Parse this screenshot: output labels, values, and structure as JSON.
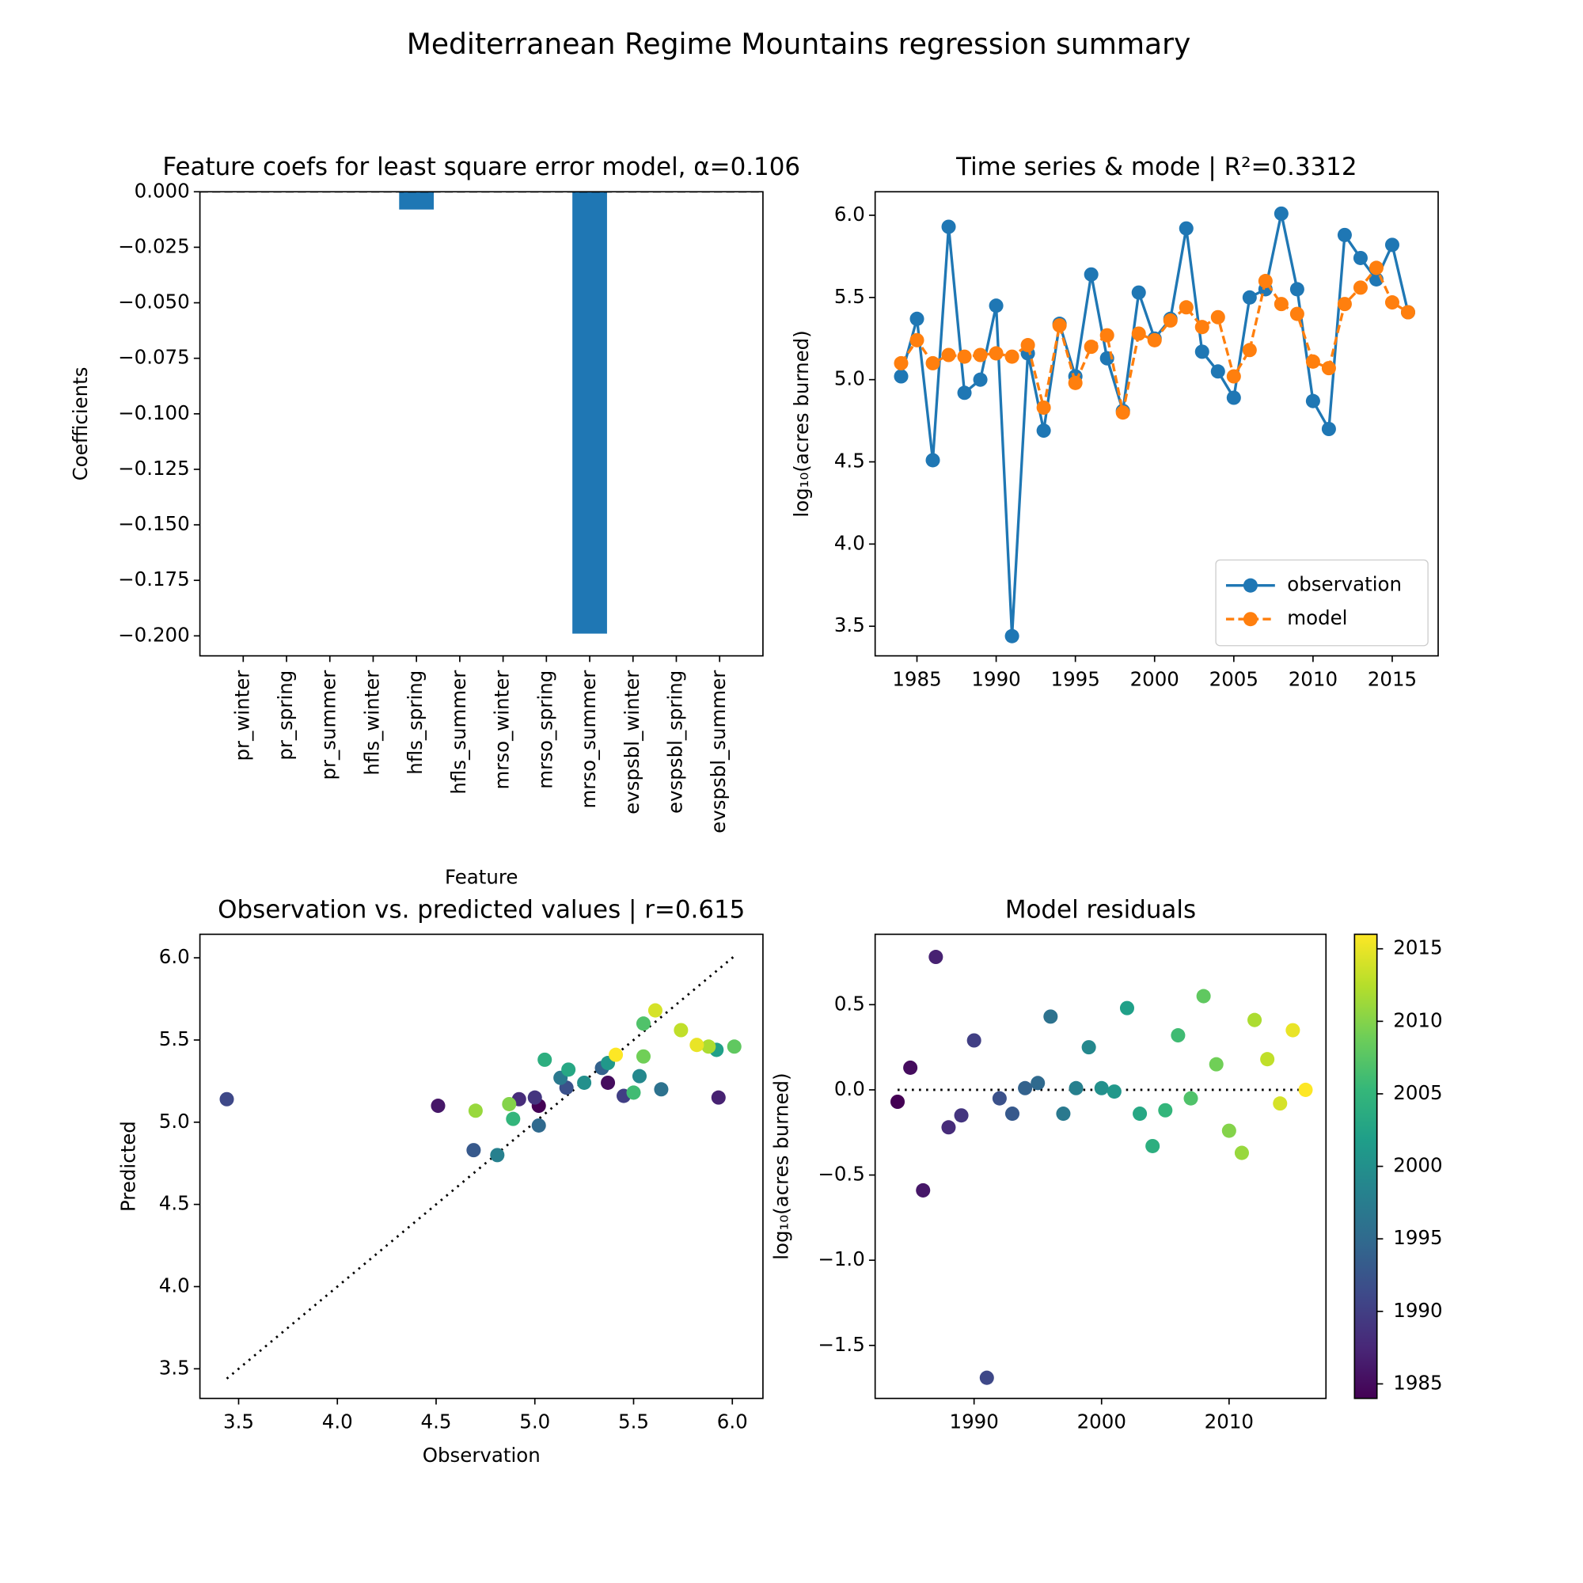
{
  "title": "Mediterranean Regime Mountains regression summary",
  "chart_data": [
    {
      "type": "bar",
      "title": "Feature coefs for least square error model, α=0.106",
      "x_label": "Feature",
      "y_label": "Coefficients",
      "categories": [
        "pr_winter",
        "pr_spring",
        "pr_summer",
        "hfls_winter",
        "hfls_spring",
        "hfls_summer",
        "mrso_winter",
        "mrso_spring",
        "mrso_summer",
        "evspsbl_winter",
        "evspsbl_spring",
        "evspsbl_summer"
      ],
      "values": [
        0,
        0,
        0,
        0,
        -0.008,
        0,
        0,
        0,
        -0.199,
        0,
        0,
        0
      ],
      "color": "#1f77b4",
      "ylim": [
        -0.209,
        0
      ],
      "yticks": [
        {
          "value": 0,
          "label": "0.000"
        },
        {
          "value": -0.025,
          "label": "−0.025"
        },
        {
          "value": -0.05,
          "label": "−0.050"
        },
        {
          "value": -0.075,
          "label": "−0.075"
        },
        {
          "value": -0.1,
          "label": "−0.100"
        },
        {
          "value": -0.125,
          "label": "−0.125"
        },
        {
          "value": -0.15,
          "label": "−0.150"
        },
        {
          "value": -0.175,
          "label": "−0.175"
        },
        {
          "value": -0.2,
          "label": "−0.200"
        }
      ],
      "reference_line": {
        "value": 0,
        "style": "dashed"
      }
    },
    {
      "type": "line",
      "title": "Time series & mode | R²=0.3312",
      "y_label": "log₁₀(acres burned)",
      "x": [
        1984,
        1985,
        1986,
        1987,
        1988,
        1989,
        1990,
        1991,
        1992,
        1993,
        1994,
        1995,
        1996,
        1997,
        1998,
        1999,
        2000,
        2001,
        2002,
        2003,
        2004,
        2005,
        2006,
        2007,
        2008,
        2009,
        2010,
        2011,
        2012,
        2013,
        2014,
        2015,
        2016
      ],
      "series": [
        {
          "name": "observation",
          "color": "#1f77b4",
          "style": "solid",
          "values": [
            5.02,
            5.37,
            4.51,
            5.93,
            4.92,
            5.0,
            5.45,
            3.44,
            5.16,
            4.69,
            5.34,
            5.02,
            5.64,
            5.13,
            4.81,
            5.53,
            5.25,
            5.37,
            5.92,
            5.17,
            5.05,
            4.89,
            5.5,
            5.55,
            6.01,
            5.55,
            4.87,
            4.7,
            5.88,
            5.74,
            5.61,
            5.82,
            5.41
          ]
        },
        {
          "name": "model",
          "color": "#ff7f0e",
          "style": "dashed",
          "values": [
            5.1,
            5.24,
            5.1,
            5.15,
            5.14,
            5.15,
            5.16,
            5.14,
            5.21,
            4.83,
            5.33,
            4.98,
            5.2,
            5.27,
            4.8,
            5.28,
            5.24,
            5.36,
            5.44,
            5.32,
            5.38,
            5.02,
            5.18,
            5.6,
            5.46,
            5.4,
            5.11,
            5.07,
            5.46,
            5.56,
            5.68,
            5.47,
            5.41
          ]
        }
      ],
      "xlim": [
        1982.36,
        2017.9
      ],
      "xticks": [
        1985,
        1990,
        1995,
        2000,
        2005,
        2010,
        2015
      ],
      "ylim": [
        3.32,
        6.143
      ],
      "yticks": [
        {
          "value": 3.5,
          "label": "3.5"
        },
        {
          "value": 4,
          "label": "4.0"
        },
        {
          "value": 4.5,
          "label": "4.5"
        },
        {
          "value": 5,
          "label": "5.0"
        },
        {
          "value": 5.5,
          "label": "5.5"
        },
        {
          "value": 6,
          "label": "6.0"
        }
      ],
      "legend": "lower right"
    },
    {
      "type": "scatter",
      "title": "Observation vs. predicted values | r=0.615",
      "x_label": "Observation",
      "y_label": "Predicted",
      "x": [
        5.02,
        5.37,
        4.51,
        5.93,
        4.92,
        5.0,
        5.45,
        3.44,
        5.16,
        4.69,
        5.34,
        5.02,
        5.64,
        5.13,
        4.81,
        5.53,
        5.25,
        5.37,
        5.92,
        5.17,
        5.05,
        4.89,
        5.5,
        5.55,
        6.01,
        5.55,
        4.87,
        4.7,
        5.88,
        5.74,
        5.61,
        5.82,
        5.41
      ],
      "values": [
        5.1,
        5.24,
        5.1,
        5.15,
        5.14,
        5.15,
        5.16,
        5.14,
        5.21,
        4.83,
        5.33,
        4.98,
        5.2,
        5.27,
        4.8,
        5.28,
        5.24,
        5.36,
        5.44,
        5.32,
        5.38,
        5.02,
        5.18,
        5.6,
        5.46,
        5.4,
        5.11,
        5.07,
        5.46,
        5.56,
        5.68,
        5.47,
        5.41
      ],
      "color_values": [
        1984,
        1985,
        1986,
        1987,
        1988,
        1989,
        1990,
        1991,
        1992,
        1993,
        1994,
        1995,
        1996,
        1997,
        1998,
        1999,
        2000,
        2001,
        2002,
        2003,
        2004,
        2005,
        2006,
        2007,
        2008,
        2009,
        2010,
        2011,
        2012,
        2013,
        2014,
        2015,
        2016
      ],
      "xlim": [
        3.304,
        6.155
      ],
      "xticks": [
        3.5,
        {
          "value": 4,
          "label": "4.0"
        },
        4.5,
        {
          "value": 5,
          "label": "5.0"
        },
        5.5,
        {
          "value": 6,
          "label": "6.0"
        }
      ],
      "ylim": [
        3.32,
        6.143
      ],
      "yticks": [
        3.5,
        {
          "value": 4,
          "label": "4.0"
        },
        4.5,
        {
          "value": 5,
          "label": "5.0"
        },
        5.5,
        {
          "value": 6,
          "label": "6.0"
        }
      ],
      "reference_line": {
        "style": "dotted",
        "slope": 1
      }
    },
    {
      "type": "scatter",
      "title": "Model residuals",
      "y_label": "log₁₀(acres burned)",
      "x": [
        1984,
        1985,
        1986,
        1987,
        1988,
        1989,
        1990,
        1991,
        1992,
        1993,
        1994,
        1995,
        1996,
        1997,
        1998,
        1999,
        2000,
        2001,
        2002,
        2003,
        2004,
        2005,
        2006,
        2007,
        2008,
        2009,
        2010,
        2011,
        2012,
        2013,
        2014,
        2015,
        2016
      ],
      "values": [
        -0.07,
        0.13,
        -0.59,
        0.78,
        -0.22,
        -0.15,
        0.29,
        -1.69,
        -0.05,
        -0.14,
        0.01,
        0.04,
        0.43,
        -0.14,
        0.01,
        0.25,
        0.01,
        -0.01,
        0.48,
        -0.14,
        -0.33,
        -0.12,
        0.32,
        -0.05,
        0.55,
        0.15,
        -0.24,
        -0.37,
        0.41,
        0.18,
        -0.08,
        0.35,
        0.0
      ],
      "color_values": [
        1984,
        1985,
        1986,
        1987,
        1988,
        1989,
        1990,
        1991,
        1992,
        1993,
        1994,
        1995,
        1996,
        1997,
        1998,
        1999,
        2000,
        2001,
        2002,
        2003,
        2004,
        2005,
        2006,
        2007,
        2008,
        2009,
        2010,
        2011,
        2012,
        2013,
        2014,
        2015,
        2016
      ],
      "xlim": [
        1982.24,
        2017.6
      ],
      "xticks": [
        1990,
        2000,
        2010
      ],
      "ylim": [
        -1.811,
        0.913
      ],
      "yticks": [
        {
          "value": -1.5,
          "label": "−1.5"
        },
        {
          "value": -1,
          "label": "−1.0"
        },
        {
          "value": -0.5,
          "label": "−0.5"
        },
        {
          "value": 0,
          "label": "0.0"
        },
        0.5
      ],
      "reference_line": {
        "value": 0,
        "style": "dotted"
      },
      "colorbar": {
        "clim": [
          1984,
          2016
        ],
        "ticks": [
          1985,
          1990,
          1995,
          2000,
          2005,
          2010,
          2015
        ],
        "colormap": [
          "#440154",
          "#482878",
          "#3e4989",
          "#31688e",
          "#26828e",
          "#1f9e89",
          "#35b779",
          "#6ece58",
          "#b5de2b",
          "#fde725"
        ]
      }
    }
  ]
}
